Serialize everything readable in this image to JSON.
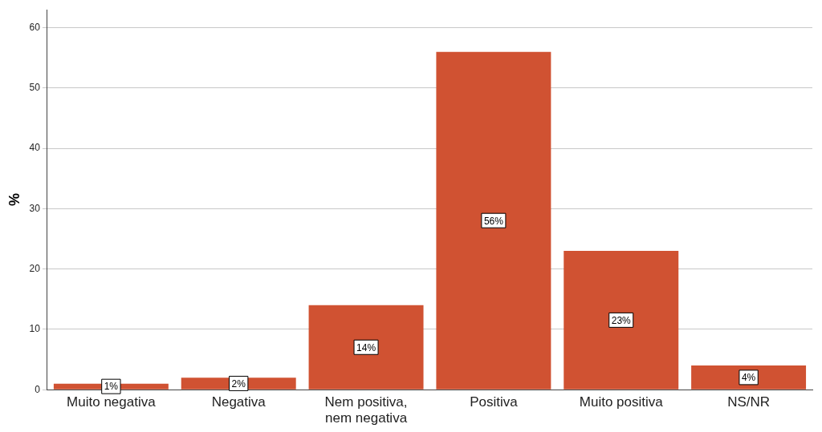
{
  "chart_data": {
    "type": "bar",
    "ylabel": "%",
    "categories": [
      "Muito negativa",
      "Negativa",
      "Nem positiva, nem negativa",
      "Positiva",
      "Muito positiva",
      "NS/NR"
    ],
    "values": [
      1,
      2,
      14,
      56,
      23,
      4
    ],
    "value_labels": [
      "1%",
      "2%",
      "14%",
      "56%",
      "23%",
      "4%"
    ],
    "color": "#d05232",
    "ylim": [
      0,
      63
    ],
    "yticks": [
      0,
      10,
      20,
      30,
      40,
      50,
      60
    ],
    "grid": "y",
    "legend": false
  }
}
